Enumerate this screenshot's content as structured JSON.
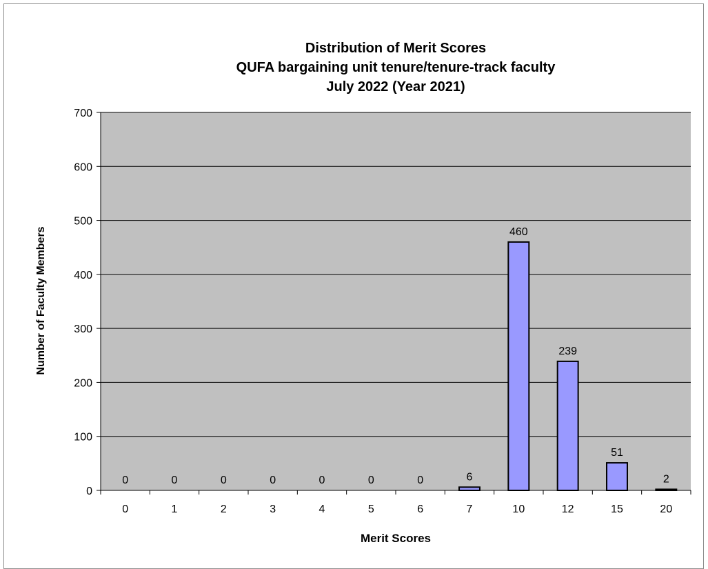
{
  "chart_data": {
    "type": "bar",
    "title": [
      "Distribution  of Merit Scores",
      "QUFA  bargaining  unit tenure/tenure-track faculty",
      "July  2022 (Year 2021)"
    ],
    "xlabel": "Merit Scores",
    "ylabel": "Number of Faculty Members",
    "categories": [
      "0",
      "1",
      "2",
      "3",
      "4",
      "5",
      "6",
      "7",
      "10",
      "12",
      "15",
      "20"
    ],
    "values": [
      0,
      0,
      0,
      0,
      0,
      0,
      0,
      6,
      460,
      239,
      51,
      2
    ],
    "ylim": [
      0,
      700
    ],
    "yticks": [
      0,
      100,
      200,
      300,
      400,
      500,
      600,
      700
    ],
    "grid": true,
    "data_labels": true,
    "colors": {
      "plot_bg": "#c0c0c0",
      "bar_fill": "#9999ff",
      "bar_stroke": "#000000",
      "grid": "#000000"
    }
  }
}
